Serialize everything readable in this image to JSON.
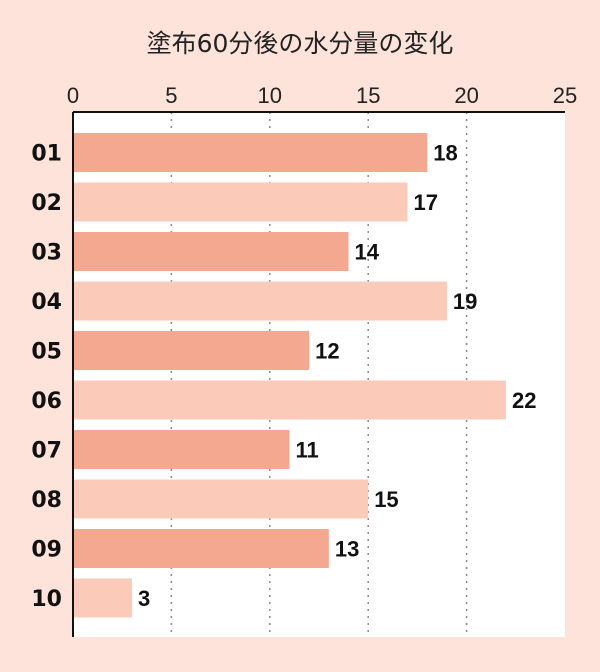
{
  "chart_data": {
    "type": "bar",
    "orientation": "horizontal",
    "title": "塗布60分後の水分量の変化",
    "categories": [
      "01",
      "02",
      "03",
      "04",
      "05",
      "06",
      "07",
      "08",
      "09",
      "10"
    ],
    "values": [
      18,
      17,
      14,
      19,
      12,
      22,
      11,
      15,
      13,
      3
    ],
    "xlim": [
      0,
      25
    ],
    "xticks": [
      0,
      5,
      10,
      15,
      20,
      25
    ],
    "xtick_labels": [
      "0",
      "5",
      "10",
      "15",
      "20",
      "25"
    ],
    "xaxis_position": "top",
    "grid": "vertical dotted",
    "xlabel": "",
    "ylabel": "",
    "colors": {
      "bar_odd": "#f4a890",
      "bar_even": "#fbcab8",
      "background": "#fde3da",
      "plot_bg": "#ffffff",
      "grid": "#888888"
    }
  }
}
